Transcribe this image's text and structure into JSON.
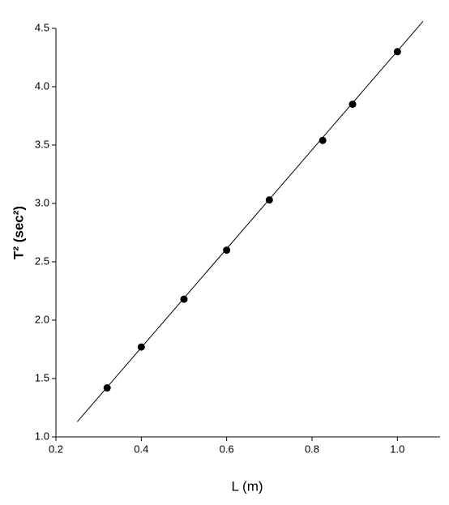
{
  "chart_data": {
    "type": "scatter",
    "x_label": "L (m)",
    "y_label": "T² (sec²)",
    "x": [
      0.32,
      0.4,
      0.5,
      0.6,
      0.7,
      0.825,
      0.895,
      1.0
    ],
    "values": [
      1.42,
      1.77,
      2.18,
      2.6,
      3.03,
      3.54,
      3.85,
      4.3
    ],
    "color": "#000000",
    "fit_line": {
      "x": [
        0.25,
        1.06
      ],
      "y": [
        1.13,
        4.56
      ],
      "color": "#000000"
    },
    "xlim": [
      0.2,
      1.1
    ],
    "ylim": [
      1.0,
      4.5
    ],
    "xticks": [
      0.2,
      0.4,
      0.6,
      0.8,
      {
        "value": 1,
        "label": "1.0"
      }
    ],
    "yticks": [
      {
        "value": 1,
        "label": "1.0"
      },
      1.5,
      {
        "value": 2,
        "label": "2.0"
      },
      2.5,
      {
        "value": 3,
        "label": "3.0"
      },
      3.5,
      {
        "value": 4,
        "label": "4.0"
      },
      4.5
    ],
    "grid": false
  }
}
